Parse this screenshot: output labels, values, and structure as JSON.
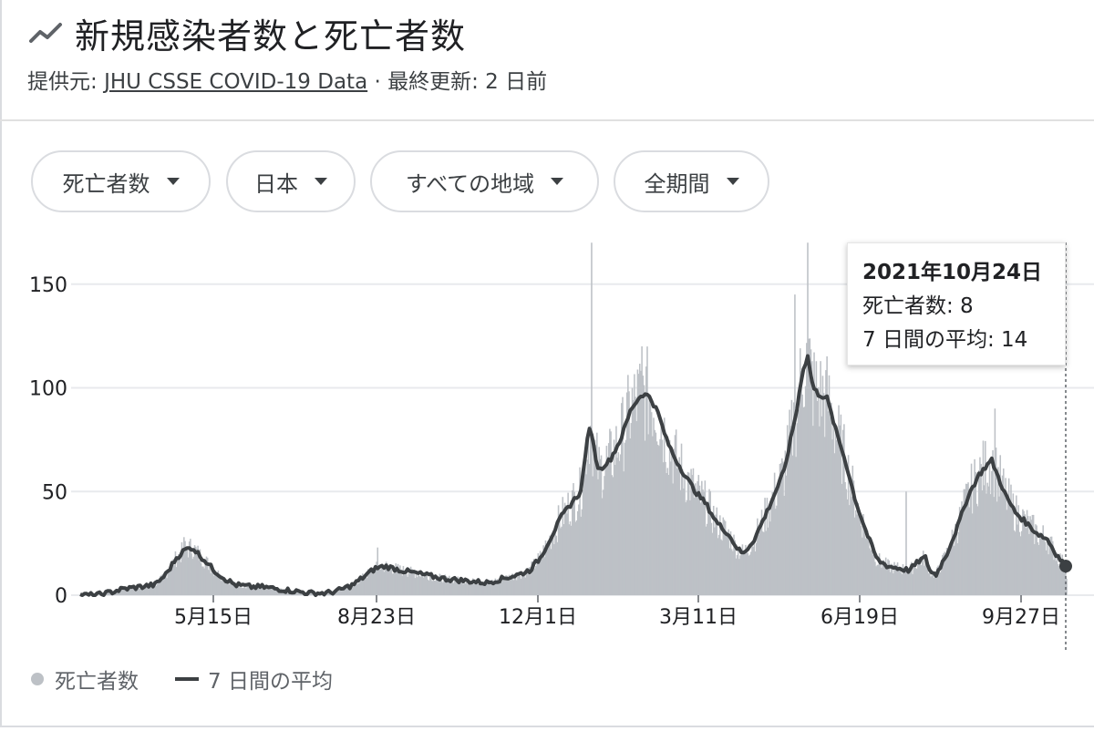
{
  "header": {
    "title": "新規感染者数と死亡者数",
    "source_prefix": "提供元: ",
    "source_link": "JHU CSSE COVID-19 Data",
    "updated": " · 最終更新: 2 日前"
  },
  "filters": [
    {
      "label": "死亡者数",
      "icon": "caret-down-icon"
    },
    {
      "label": "日本",
      "icon": "caret-down-icon"
    },
    {
      "label": "すべての地域",
      "icon": "caret-down-icon"
    },
    {
      "label": "全期間",
      "icon": "caret-down-icon"
    }
  ],
  "tooltip": {
    "date": "2021年10月24日",
    "deaths": "死亡者数: 8",
    "avg": "7 日間の平均: 14"
  },
  "legend": {
    "bars": "死亡者数",
    "line": "7 日間の平均"
  },
  "colors": {
    "bars": "#bdc1c6",
    "line": "#3c4043",
    "grid": "#e8eaed",
    "axis": "#5f6368"
  },
  "chart_data": {
    "type": "bar",
    "ylim": [
      0,
      170
    ],
    "yticks": [
      0,
      50,
      100,
      150
    ],
    "x_labels": [
      "5月15日",
      "8月23日",
      "12月1日",
      "3月11日",
      "6月19日",
      "9月27日"
    ],
    "series": [
      {
        "name": "7 日間の平均",
        "type": "line",
        "points": [
          [
            0,
            0
          ],
          [
            15,
            0
          ],
          [
            25,
            1
          ],
          [
            40,
            3
          ],
          [
            55,
            4
          ],
          [
            70,
            5
          ],
          [
            80,
            10
          ],
          [
            90,
            18
          ],
          [
            98,
            22
          ],
          [
            105,
            23
          ],
          [
            112,
            19
          ],
          [
            118,
            16
          ],
          [
            125,
            12
          ],
          [
            135,
            8
          ],
          [
            145,
            5
          ],
          [
            160,
            4
          ],
          [
            170,
            4
          ],
          [
            185,
            3
          ],
          [
            200,
            2
          ],
          [
            215,
            1
          ],
          [
            230,
            1
          ],
          [
            240,
            2
          ],
          [
            255,
            5
          ],
          [
            268,
            10
          ],
          [
            276,
            13
          ],
          [
            285,
            14
          ],
          [
            300,
            12
          ],
          [
            320,
            10
          ],
          [
            340,
            8
          ],
          [
            360,
            7
          ],
          [
            380,
            6
          ],
          [
            395,
            8
          ],
          [
            410,
            10
          ],
          [
            420,
            12
          ],
          [
            430,
            18
          ],
          [
            440,
            28
          ],
          [
            450,
            38
          ],
          [
            460,
            45
          ],
          [
            468,
            50
          ],
          [
            473,
            72
          ],
          [
            477,
            82
          ],
          [
            481,
            68
          ],
          [
            485,
            60
          ],
          [
            490,
            63
          ],
          [
            495,
            65
          ],
          [
            505,
            75
          ],
          [
            515,
            90
          ],
          [
            525,
            97
          ],
          [
            532,
            96
          ],
          [
            540,
            88
          ],
          [
            548,
            75
          ],
          [
            556,
            66
          ],
          [
            565,
            58
          ],
          [
            575,
            50
          ],
          [
            585,
            44
          ],
          [
            595,
            35
          ],
          [
            605,
            30
          ],
          [
            615,
            22
          ],
          [
            620,
            20
          ],
          [
            630,
            27
          ],
          [
            640,
            38
          ],
          [
            650,
            50
          ],
          [
            658,
            60
          ],
          [
            664,
            75
          ],
          [
            670,
            90
          ],
          [
            675,
            108
          ],
          [
            680,
            115
          ],
          [
            685,
            100
          ],
          [
            690,
            97
          ],
          [
            698,
            95
          ],
          [
            706,
            80
          ],
          [
            715,
            65
          ],
          [
            725,
            45
          ],
          [
            735,
            30
          ],
          [
            745,
            17
          ],
          [
            755,
            14
          ],
          [
            765,
            13
          ],
          [
            775,
            12
          ],
          [
            785,
            17
          ],
          [
            790,
            18
          ],
          [
            795,
            11
          ],
          [
            800,
            10
          ],
          [
            810,
            20
          ],
          [
            820,
            33
          ],
          [
            830,
            48
          ],
          [
            840,
            58
          ],
          [
            848,
            63
          ],
          [
            852,
            65
          ],
          [
            858,
            57
          ],
          [
            866,
            47
          ],
          [
            874,
            40
          ],
          [
            884,
            35
          ],
          [
            894,
            30
          ],
          [
            904,
            27
          ],
          [
            912,
            20
          ],
          [
            918,
            16
          ],
          [
            922,
            14
          ]
        ]
      },
      {
        "name": "死亡者数",
        "type": "bar",
        "note": "daily deaths, peaks approx.",
        "peaks": [
          [
            97,
            28
          ],
          [
            278,
            23
          ],
          [
            478,
            170
          ],
          [
            525,
            120
          ],
          [
            668,
            145
          ],
          [
            680,
            170
          ],
          [
            772,
            50
          ],
          [
            855,
            90
          ]
        ]
      }
    ]
  }
}
